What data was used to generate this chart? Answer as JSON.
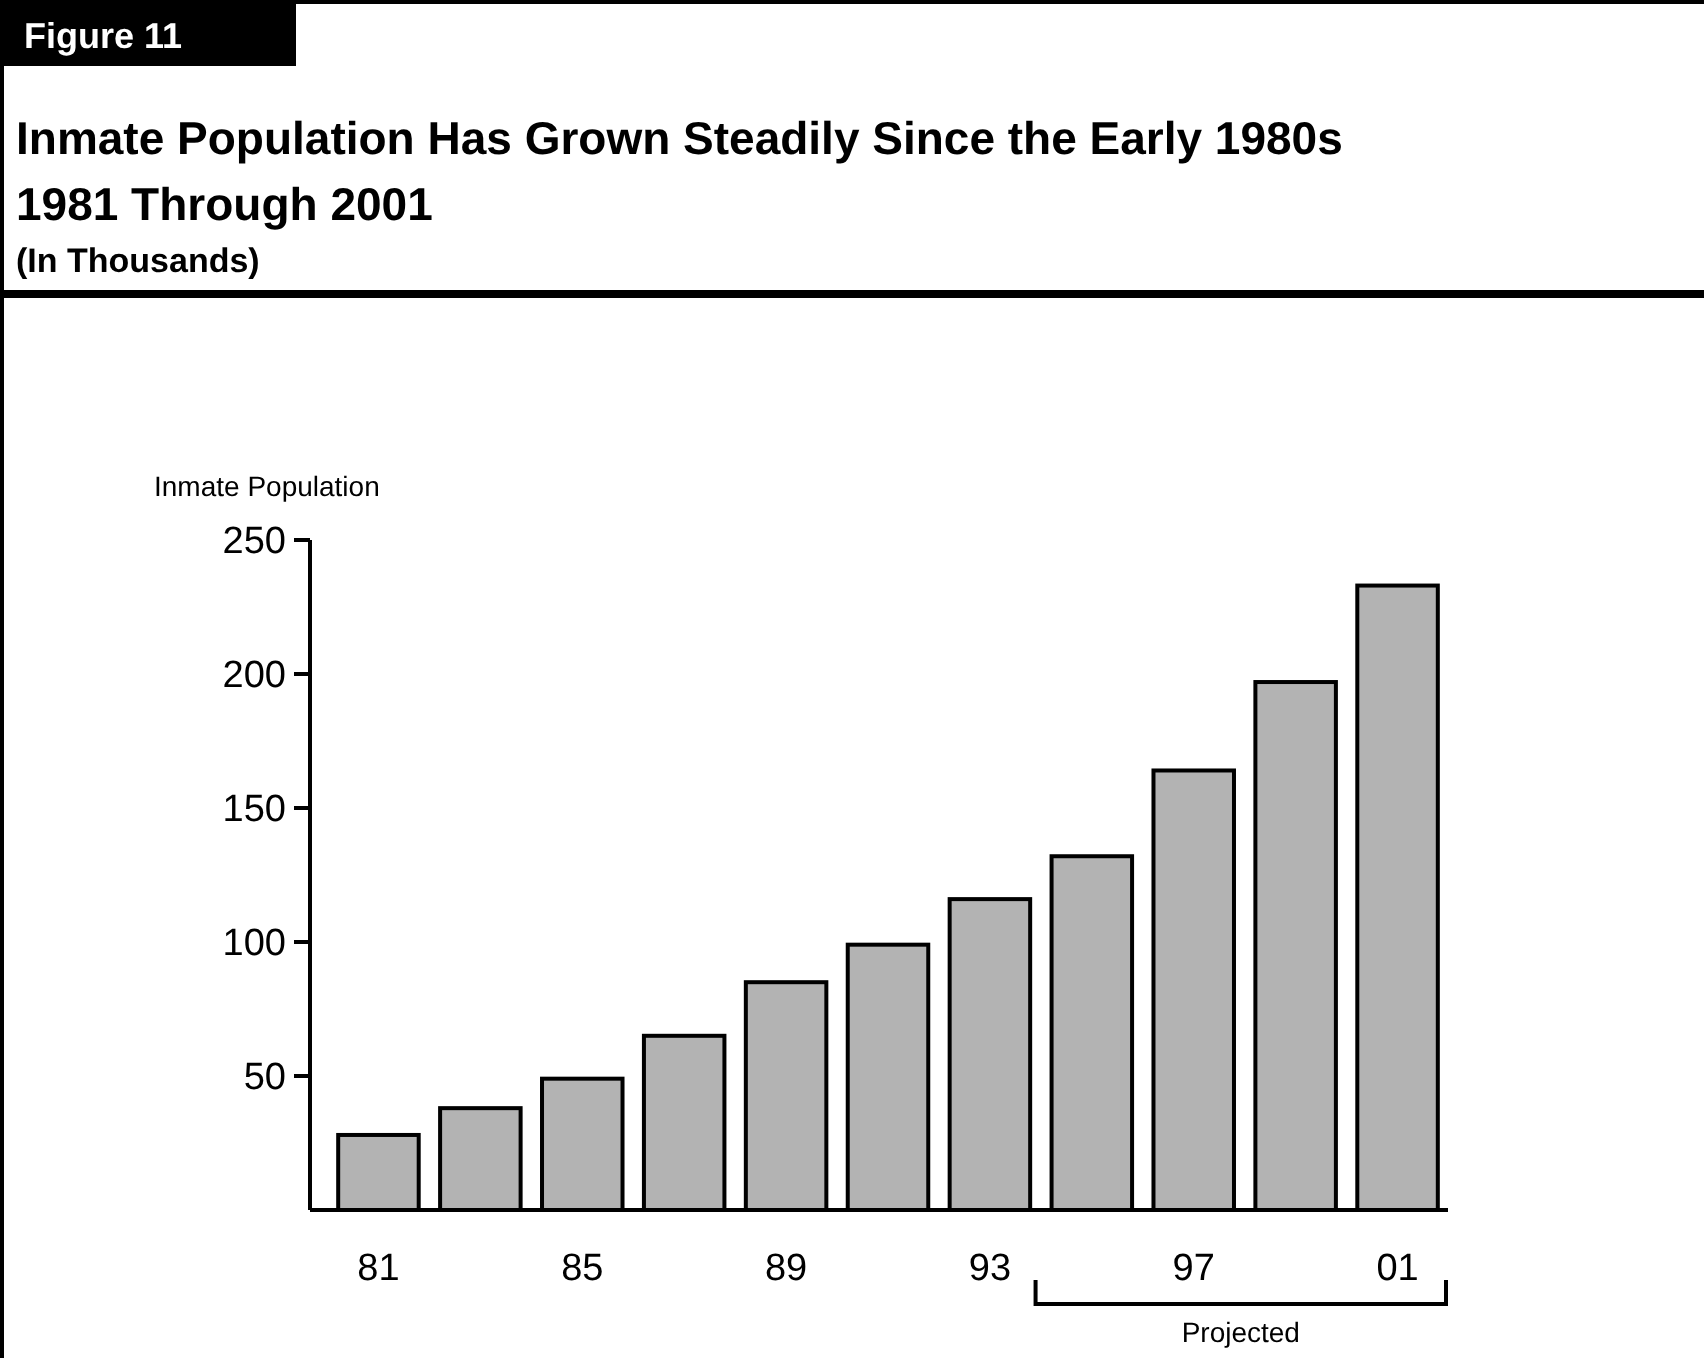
{
  "chart_data": {
    "type": "bar",
    "title": "Inmate Population Has Grown Steadily Since the Early 1980s",
    "subtitle": "1981 Through 2001",
    "annotations": [
      "Figure 11",
      "(In Thousands)",
      "Projected"
    ],
    "ylabel": "Inmate Population",
    "categories": [
      "81",
      null,
      "85",
      null,
      "89",
      null,
      "93",
      null,
      "97",
      null,
      "01"
    ],
    "values": [
      28,
      38,
      49,
      65,
      85,
      99,
      116,
      132,
      164,
      197,
      233
    ],
    "color": "#b3b3b3",
    "ylim": [
      0,
      250
    ],
    "yticks": [
      50,
      100,
      150,
      200,
      250
    ],
    "grid": false
  }
}
